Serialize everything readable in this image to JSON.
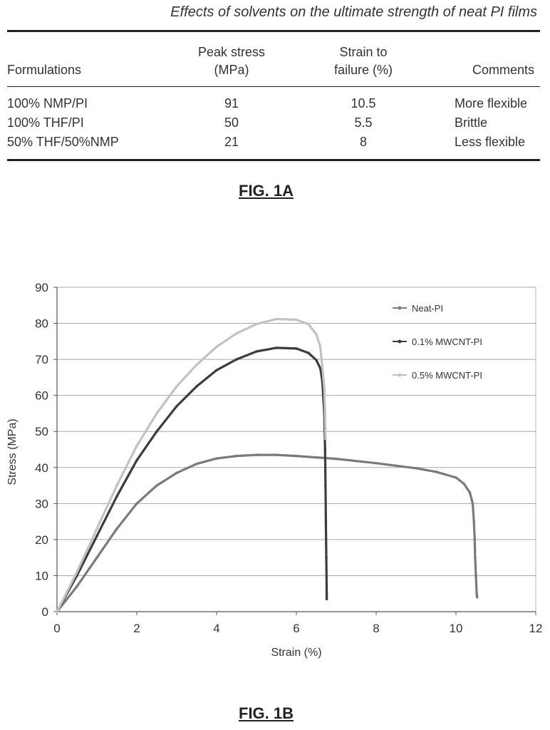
{
  "table": {
    "caption": "Effects of solvents on the ultimate strength of neat PI films",
    "headers": {
      "formulations": "Formulations",
      "peak_stress_1": "Peak stress",
      "peak_stress_2": "(MPa)",
      "strain_1": "Strain to",
      "strain_2": "failure (%)",
      "comments": "Comments"
    },
    "rows": [
      {
        "formulation": "100% NMP/PI",
        "peak_stress": "91",
        "strain": "10.5",
        "comment": "More flexible"
      },
      {
        "formulation": "100% THF/PI",
        "peak_stress": "50",
        "strain": "5.5",
        "comment": "Brittle"
      },
      {
        "formulation": "50% THF/50%NMP",
        "peak_stress": "21",
        "strain": "8",
        "comment": "Less flexible"
      }
    ],
    "figure_label": "FIG. 1A"
  },
  "chart_data": {
    "type": "line",
    "title": "",
    "xlabel": "Strain (%)",
    "ylabel": "Stress (MPa)",
    "xlim": [
      0,
      12
    ],
    "ylim": [
      0,
      90
    ],
    "xticks": [
      0,
      2,
      4,
      6,
      8,
      10,
      12
    ],
    "yticks": [
      0,
      10,
      20,
      30,
      40,
      50,
      60,
      70,
      80,
      90
    ],
    "grid": "horizontal",
    "legend_position": "top-right",
    "series": [
      {
        "name": "Neat-PI",
        "color": "#7a7a7a",
        "points": [
          [
            0,
            0
          ],
          [
            0.5,
            7
          ],
          [
            1,
            15
          ],
          [
            1.5,
            23
          ],
          [
            2,
            30
          ],
          [
            2.5,
            35
          ],
          [
            3,
            38.5
          ],
          [
            3.5,
            41
          ],
          [
            4,
            42.5
          ],
          [
            4.5,
            43.2
          ],
          [
            5,
            43.5
          ],
          [
            5.5,
            43.5
          ],
          [
            6,
            43.2
          ],
          [
            6.5,
            42.8
          ],
          [
            7,
            42.4
          ],
          [
            7.5,
            41.8
          ],
          [
            8,
            41.2
          ],
          [
            8.5,
            40.5
          ],
          [
            9,
            39.8
          ],
          [
            9.5,
            38.8
          ],
          [
            10,
            37.2
          ],
          [
            10.2,
            35.5
          ],
          [
            10.35,
            33
          ],
          [
            10.42,
            30
          ],
          [
            10.45,
            25
          ],
          [
            10.47,
            20
          ],
          [
            10.48,
            15
          ],
          [
            10.5,
            10
          ],
          [
            10.52,
            5
          ],
          [
            10.53,
            4
          ]
        ]
      },
      {
        "name": "0.1% MWCNT-PI",
        "color": "#3c3c3c",
        "points": [
          [
            0,
            0
          ],
          [
            0.5,
            10
          ],
          [
            1,
            21
          ],
          [
            1.5,
            32
          ],
          [
            2,
            42
          ],
          [
            2.5,
            50
          ],
          [
            3,
            57
          ],
          [
            3.5,
            62.5
          ],
          [
            4,
            67
          ],
          [
            4.5,
            70
          ],
          [
            5,
            72.2
          ],
          [
            5.5,
            73.2
          ],
          [
            6,
            73
          ],
          [
            6.3,
            71.8
          ],
          [
            6.5,
            69.8
          ],
          [
            6.6,
            67.5
          ],
          [
            6.65,
            64
          ],
          [
            6.7,
            55
          ],
          [
            6.72,
            45
          ],
          [
            6.73,
            35
          ],
          [
            6.74,
            25
          ],
          [
            6.75,
            15
          ],
          [
            6.76,
            5
          ],
          [
            6.76,
            3.5
          ]
        ]
      },
      {
        "name": "0.5% MWCNT-PI",
        "color": "#c2c2c2",
        "points": [
          [
            0,
            0
          ],
          [
            0.5,
            11
          ],
          [
            1,
            23
          ],
          [
            1.5,
            35
          ],
          [
            2,
            46
          ],
          [
            2.5,
            55
          ],
          [
            3,
            62.5
          ],
          [
            3.5,
            68.5
          ],
          [
            4,
            73.5
          ],
          [
            4.5,
            77.2
          ],
          [
            5,
            79.8
          ],
          [
            5.5,
            81.2
          ],
          [
            6,
            81
          ],
          [
            6.3,
            79.8
          ],
          [
            6.5,
            77
          ],
          [
            6.6,
            73.5
          ],
          [
            6.65,
            68
          ],
          [
            6.7,
            62
          ],
          [
            6.72,
            55
          ],
          [
            6.73,
            48
          ]
        ]
      }
    ]
  },
  "figure_label_b": "FIG. 1B"
}
